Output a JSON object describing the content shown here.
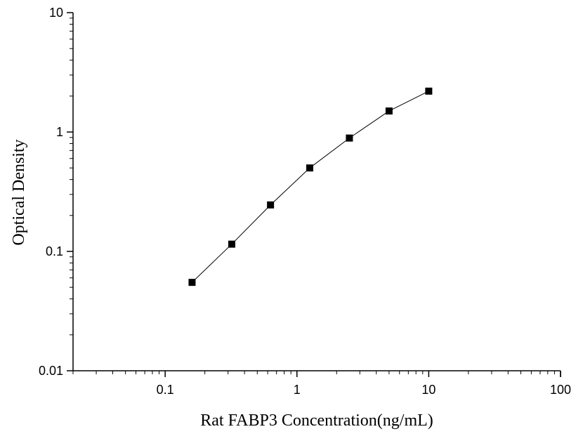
{
  "chart_data": {
    "type": "line",
    "title": "",
    "xlabel": "Rat FABP3 Concentration(ng/mL)",
    "ylabel": "Optical Density",
    "xscale": "log",
    "yscale": "log",
    "xlim": [
      0.02,
      100
    ],
    "ylim": [
      0.01,
      10
    ],
    "x_ticks": [
      {
        "value": 0.1,
        "label": "0.1"
      },
      {
        "value": 1,
        "label": "1"
      },
      {
        "value": 10,
        "label": "10"
      },
      {
        "value": 100,
        "label": "100"
      }
    ],
    "y_ticks": [
      {
        "value": 0.01,
        "label": "0.01"
      },
      {
        "value": 0.1,
        "label": "0.1"
      },
      {
        "value": 1,
        "label": "1"
      },
      {
        "value": 10,
        "label": "10"
      }
    ],
    "grid": false,
    "legend": "none",
    "marker": "square",
    "line_color": "#000000",
    "marker_color": "#000000",
    "series": [
      {
        "x": [
          0.16,
          0.32,
          0.63,
          1.25,
          2.5,
          5,
          10
        ],
        "y": [
          0.055,
          0.115,
          0.245,
          0.5,
          0.89,
          1.5,
          2.2
        ]
      }
    ]
  }
}
